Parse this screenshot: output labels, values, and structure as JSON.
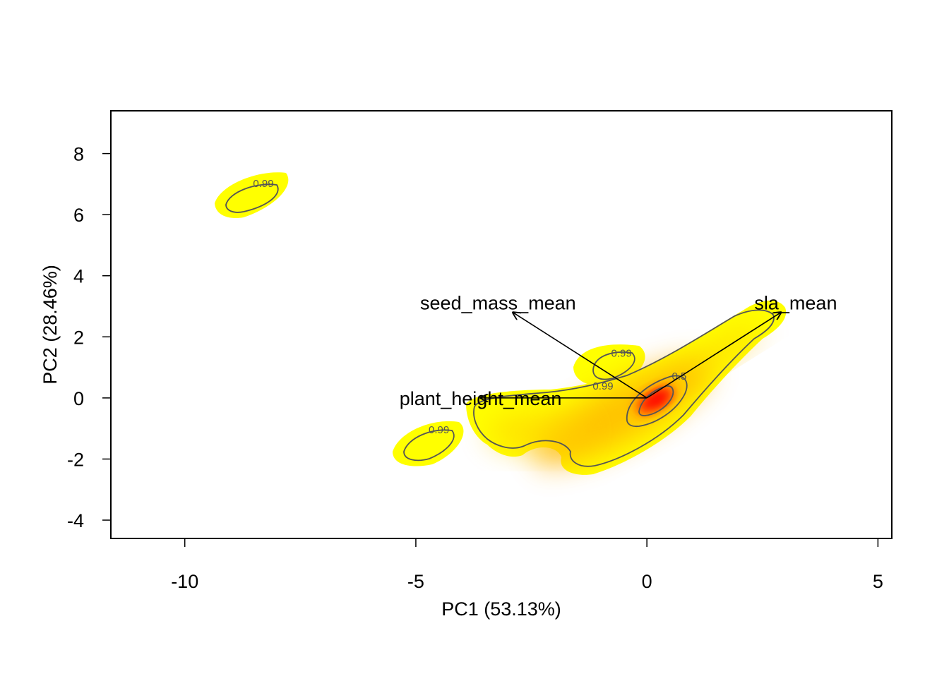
{
  "chart_data": {
    "type": "biplot",
    "title": "",
    "xlabel": "PC1 (53.13%)",
    "ylabel": "PC2 (28.46%)",
    "xlim": [
      -11.6,
      5.3
    ],
    "ylim": [
      -4.6,
      9.4
    ],
    "x_ticks": [
      -10,
      -5,
      0,
      5
    ],
    "y_ticks": [
      -4,
      -2,
      0,
      2,
      4,
      6,
      8
    ],
    "grid": false,
    "legend": "none",
    "colors": {
      "density_low": "#ffff00",
      "density_mid": "#ffa500",
      "density_high": "#ff2000",
      "contour": "#555555",
      "arrow": "#000000"
    },
    "loadings": [
      {
        "label": "seed_mass_mean",
        "x": -2.9,
        "y": 2.8
      },
      {
        "label": "sla_mean",
        "x": 2.9,
        "y": 2.8
      },
      {
        "label": "plant_height_mean",
        "x": -3.6,
        "y": 0.0
      }
    ],
    "contour_labels": [
      {
        "text": "0.99",
        "x": -8.3,
        "y": 6.9
      },
      {
        "text": "0.99",
        "x": -0.55,
        "y": 1.35
      },
      {
        "text": "0.99",
        "x": -0.95,
        "y": 0.28
      },
      {
        "text": "0.99",
        "x": -4.5,
        "y": -1.16
      },
      {
        "text": "0.5",
        "x": 0.7,
        "y": 0.6
      }
    ]
  }
}
